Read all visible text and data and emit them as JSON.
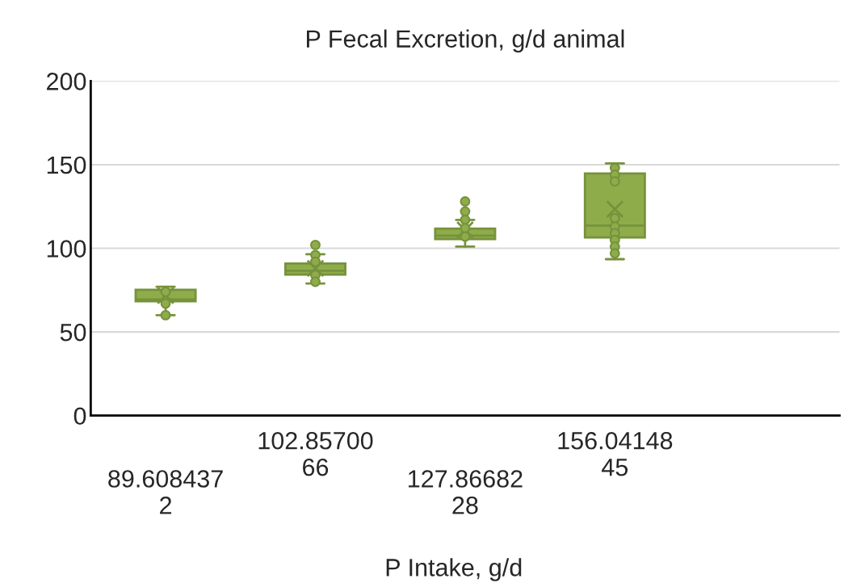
{
  "chart_data": {
    "type": "box",
    "title": "P Fecal Excretion, g/d animal",
    "xlabel": "P Intake, g/d",
    "categories": [
      "89.6084372",
      "102.8570066",
      "127.8668228",
      "156.0414845"
    ],
    "boxes": [
      {
        "low": 60,
        "q1": 68.4,
        "median": 69.4,
        "q3": 75.2,
        "high": 77,
        "mean": 71.8
      },
      {
        "low": 79,
        "q1": 84.3,
        "median": 86.6,
        "q3": 90.9,
        "high": 96.4,
        "mean": 88
      },
      {
        "low": 101,
        "q1": 105.5,
        "median": 107.5,
        "q3": 111.8,
        "high": 117,
        "mean": 111
      },
      {
        "low": 93.5,
        "q1": 106.5,
        "median": 113.6,
        "q3": 144.7,
        "high": 150.8,
        "mean": 123.4
      }
    ],
    "color": "#8fac4b",
    "series": [
      {
        "type": "scatter",
        "color": "#8fac4b",
        "x": [
          "89.6084372",
          "89.6084372",
          "89.6084372",
          "102.8570066",
          "102.8570066",
          "102.8570066",
          "102.8570066",
          "102.8570066",
          "127.8668228",
          "127.8668228",
          "127.8668228",
          "127.8668228",
          "127.8668228",
          "156.0414845",
          "156.0414845",
          "156.0414845",
          "156.0414845",
          "156.0414845",
          "156.0414845",
          "156.0414845",
          "156.0414845",
          "156.0414845"
        ],
        "values": [
          74,
          67,
          60,
          102,
          96,
          92,
          84,
          80,
          128,
          122,
          117,
          112,
          107,
          148,
          144,
          140,
          118,
          113,
          109,
          105,
          101,
          97
        ]
      }
    ],
    "ylim": [
      0,
      200
    ],
    "yticks": [
      0,
      50,
      100,
      150,
      200
    ],
    "grid": "y",
    "marker": "circle",
    "legend": false
  }
}
